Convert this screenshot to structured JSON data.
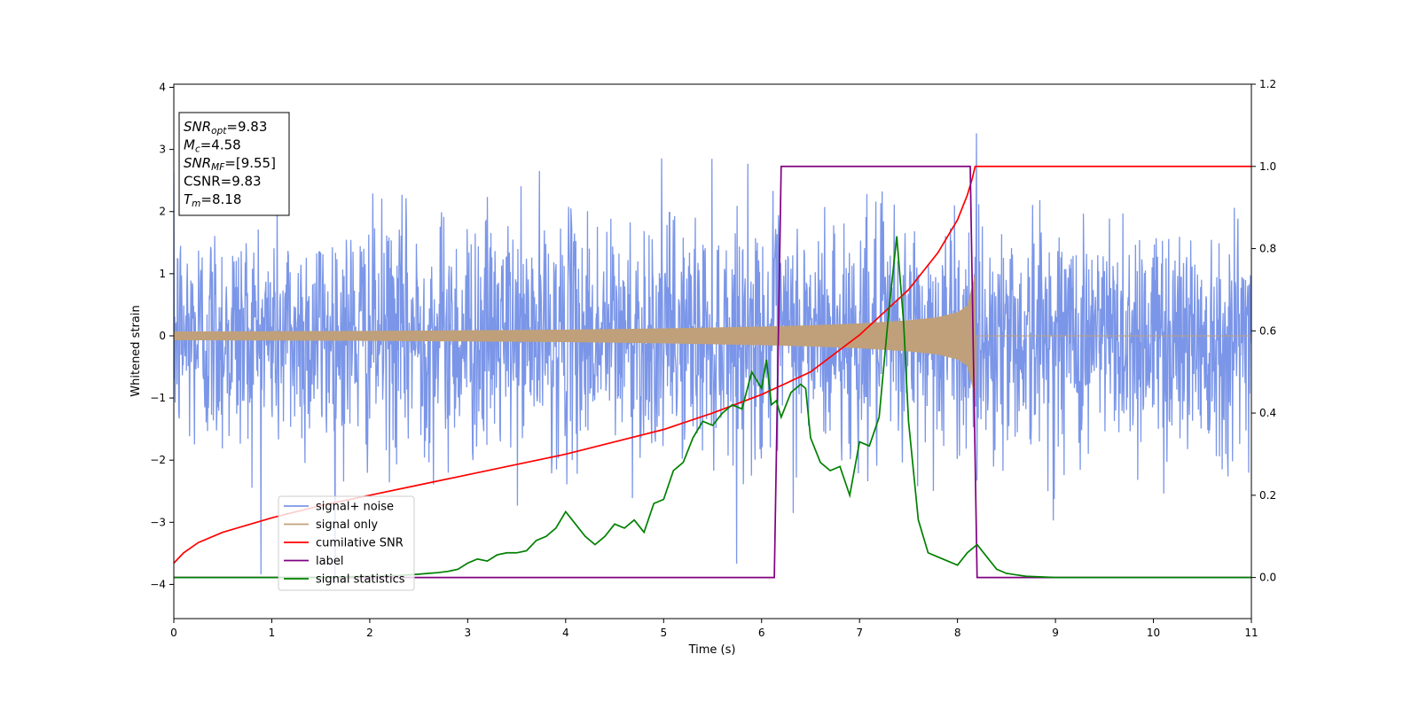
{
  "chart_data": {
    "type": "line",
    "xlabel": "Time (s)",
    "ylabel": "Whitened strain",
    "xlim": [
      0,
      11
    ],
    "ylim": [
      -4.55,
      4.05
    ],
    "ylim_right": [
      -0.1,
      1.2
    ],
    "x_ticks": [
      "0",
      "1",
      "2",
      "3",
      "4",
      "5",
      "6",
      "7",
      "8",
      "9",
      "10",
      "11"
    ],
    "y_ticks": [
      "−4",
      "−3",
      "−2",
      "−1",
      "0",
      "1",
      "2",
      "3",
      "4"
    ],
    "y_ticks_right": [
      "0.0",
      "0.2",
      "0.4",
      "0.6",
      "0.8",
      "1.0",
      "1.2"
    ],
    "grid": false,
    "legend_position": "lower-left",
    "stats": [
      {
        "sym": "SNR",
        "sub": "opt",
        "val": "=9.83"
      },
      {
        "sym": "M",
        "sub": "c",
        "val": "=4.58"
      },
      {
        "sym": "SNR",
        "sub": "MF",
        "val": "=[9.55]"
      },
      {
        "sym": "",
        "sub": "",
        "val": "CSNR=9.83"
      },
      {
        "sym": "T",
        "sub": "m",
        "val": "=8.18"
      }
    ],
    "series": [
      {
        "name": "signal+ noise",
        "color": "#7b96e8",
        "axis": "left",
        "kind": "noise",
        "noise_sigma": 1.0,
        "typical_range": [
          -2.6,
          2.6
        ],
        "extreme_range": [
          -4.15,
          3.65
        ]
      },
      {
        "name": "signal only",
        "color": "#c0a07a",
        "axis": "left",
        "kind": "chirp",
        "envelope": {
          "t": [
            0,
            1,
            2,
            3,
            4,
            5,
            6,
            6.5,
            7,
            7.5,
            7.8,
            8.0,
            8.1,
            8.15,
            8.18
          ],
          "amp": [
            0.07,
            0.075,
            0.08,
            0.09,
            0.1,
            0.12,
            0.15,
            0.17,
            0.2,
            0.25,
            0.3,
            0.38,
            0.48,
            0.8,
            1.0
          ]
        },
        "merger_time": 8.18
      },
      {
        "name": "cumilative SNR",
        "color": "#ff0000",
        "axis": "right",
        "x": [
          0,
          0.1,
          0.25,
          0.5,
          1,
          1.5,
          2,
          2.5,
          3,
          3.5,
          4,
          4.5,
          5,
          5.5,
          6,
          6.5,
          7,
          7.5,
          7.8,
          8.0,
          8.1,
          8.15,
          8.18,
          11
        ],
        "y": [
          0.035,
          0.06,
          0.085,
          0.11,
          0.145,
          0.175,
          0.2,
          0.225,
          0.25,
          0.275,
          0.3,
          0.33,
          0.36,
          0.4,
          0.445,
          0.5,
          0.59,
          0.7,
          0.79,
          0.87,
          0.93,
          0.97,
          1.0,
          1.0
        ]
      },
      {
        "name": "label",
        "color": "#800080",
        "axis": "right",
        "x": [
          0,
          6.13,
          6.2,
          8.13,
          8.2,
          11
        ],
        "y": [
          0,
          0,
          1,
          1,
          0,
          0
        ]
      },
      {
        "name": "signal statistics",
        "color": "#008000",
        "axis": "right",
        "x": [
          0,
          0.5,
          1,
          1.5,
          2,
          2.3,
          2.5,
          2.7,
          2.8,
          2.9,
          3.0,
          3.1,
          3.2,
          3.3,
          3.4,
          3.5,
          3.6,
          3.7,
          3.8,
          3.9,
          4.0,
          4.1,
          4.2,
          4.3,
          4.4,
          4.5,
          4.6,
          4.7,
          4.8,
          4.9,
          5.0,
          5.1,
          5.2,
          5.3,
          5.4,
          5.5,
          5.6,
          5.7,
          5.8,
          5.9,
          6.0,
          6.05,
          6.1,
          6.15,
          6.2,
          6.3,
          6.4,
          6.45,
          6.5,
          6.6,
          6.7,
          6.8,
          6.9,
          7.0,
          7.1,
          7.2,
          7.3,
          7.38,
          7.45,
          7.5,
          7.6,
          7.7,
          7.8,
          7.9,
          8.0,
          8.1,
          8.2,
          8.3,
          8.4,
          8.5,
          8.7,
          9.0,
          11
        ],
        "y": [
          0.0,
          0.0,
          0.0,
          0.0,
          0.003,
          0.005,
          0.008,
          0.012,
          0.015,
          0.02,
          0.035,
          0.045,
          0.04,
          0.055,
          0.06,
          0.06,
          0.065,
          0.09,
          0.1,
          0.12,
          0.16,
          0.13,
          0.1,
          0.08,
          0.1,
          0.13,
          0.12,
          0.14,
          0.11,
          0.18,
          0.19,
          0.26,
          0.28,
          0.34,
          0.38,
          0.37,
          0.4,
          0.42,
          0.41,
          0.5,
          0.46,
          0.53,
          0.42,
          0.43,
          0.39,
          0.45,
          0.47,
          0.46,
          0.34,
          0.28,
          0.26,
          0.27,
          0.2,
          0.33,
          0.32,
          0.39,
          0.65,
          0.83,
          0.62,
          0.38,
          0.14,
          0.06,
          0.05,
          0.04,
          0.03,
          0.06,
          0.08,
          0.05,
          0.02,
          0.01,
          0.003,
          0.0,
          0.0
        ]
      }
    ]
  }
}
